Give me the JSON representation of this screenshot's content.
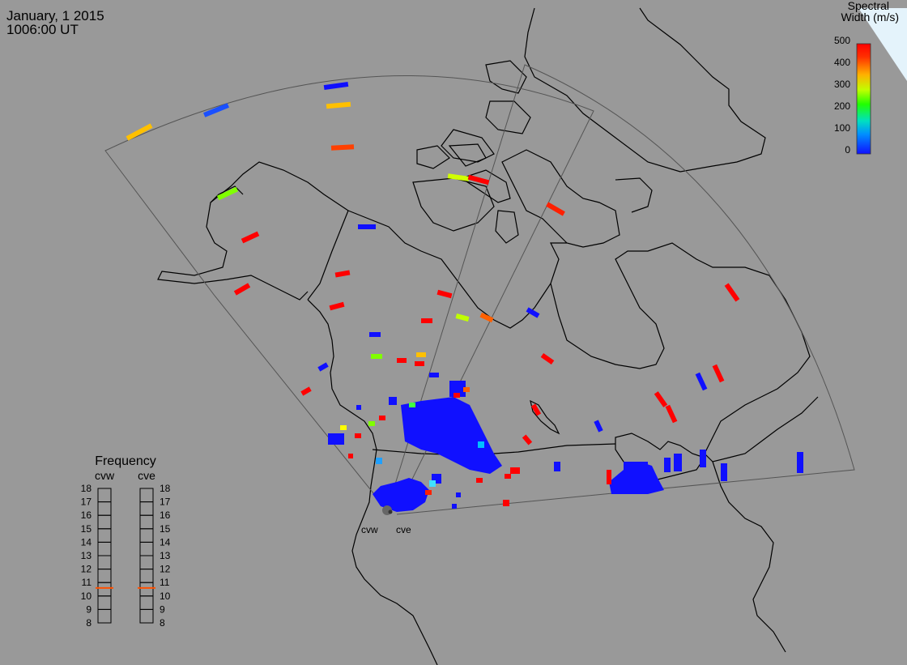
{
  "header": {
    "date": "January, 1 2015",
    "time": "1006:00 UT"
  },
  "colorbar": {
    "title_line1": "Spectral",
    "title_line2": "Width (m/s)",
    "ticks": [
      "500",
      "400",
      "300",
      "200",
      "100",
      "0"
    ],
    "colors": [
      "#ff0000",
      "#ff6000",
      "#ffc000",
      "#c0ff00",
      "#20ff00",
      "#00e0c0",
      "#0080ff",
      "#1010ff"
    ]
  },
  "frequency_panel": {
    "title": "Frequency",
    "radar_left": "cvw",
    "radar_right": "cve",
    "ticks": [
      "18",
      "17",
      "16",
      "15",
      "14",
      "13",
      "12",
      "11",
      "10",
      "9",
      "8"
    ],
    "left_mhz": 10.6,
    "right_mhz": 10.6,
    "marker_color": "#ff5000"
  },
  "radar_labels": {
    "west": "cvw",
    "east": "cve"
  },
  "colors": {
    "background": "#999999",
    "land_line": "#000000",
    "fov_line": "#555555",
    "corner": "#e4f3fb"
  }
}
